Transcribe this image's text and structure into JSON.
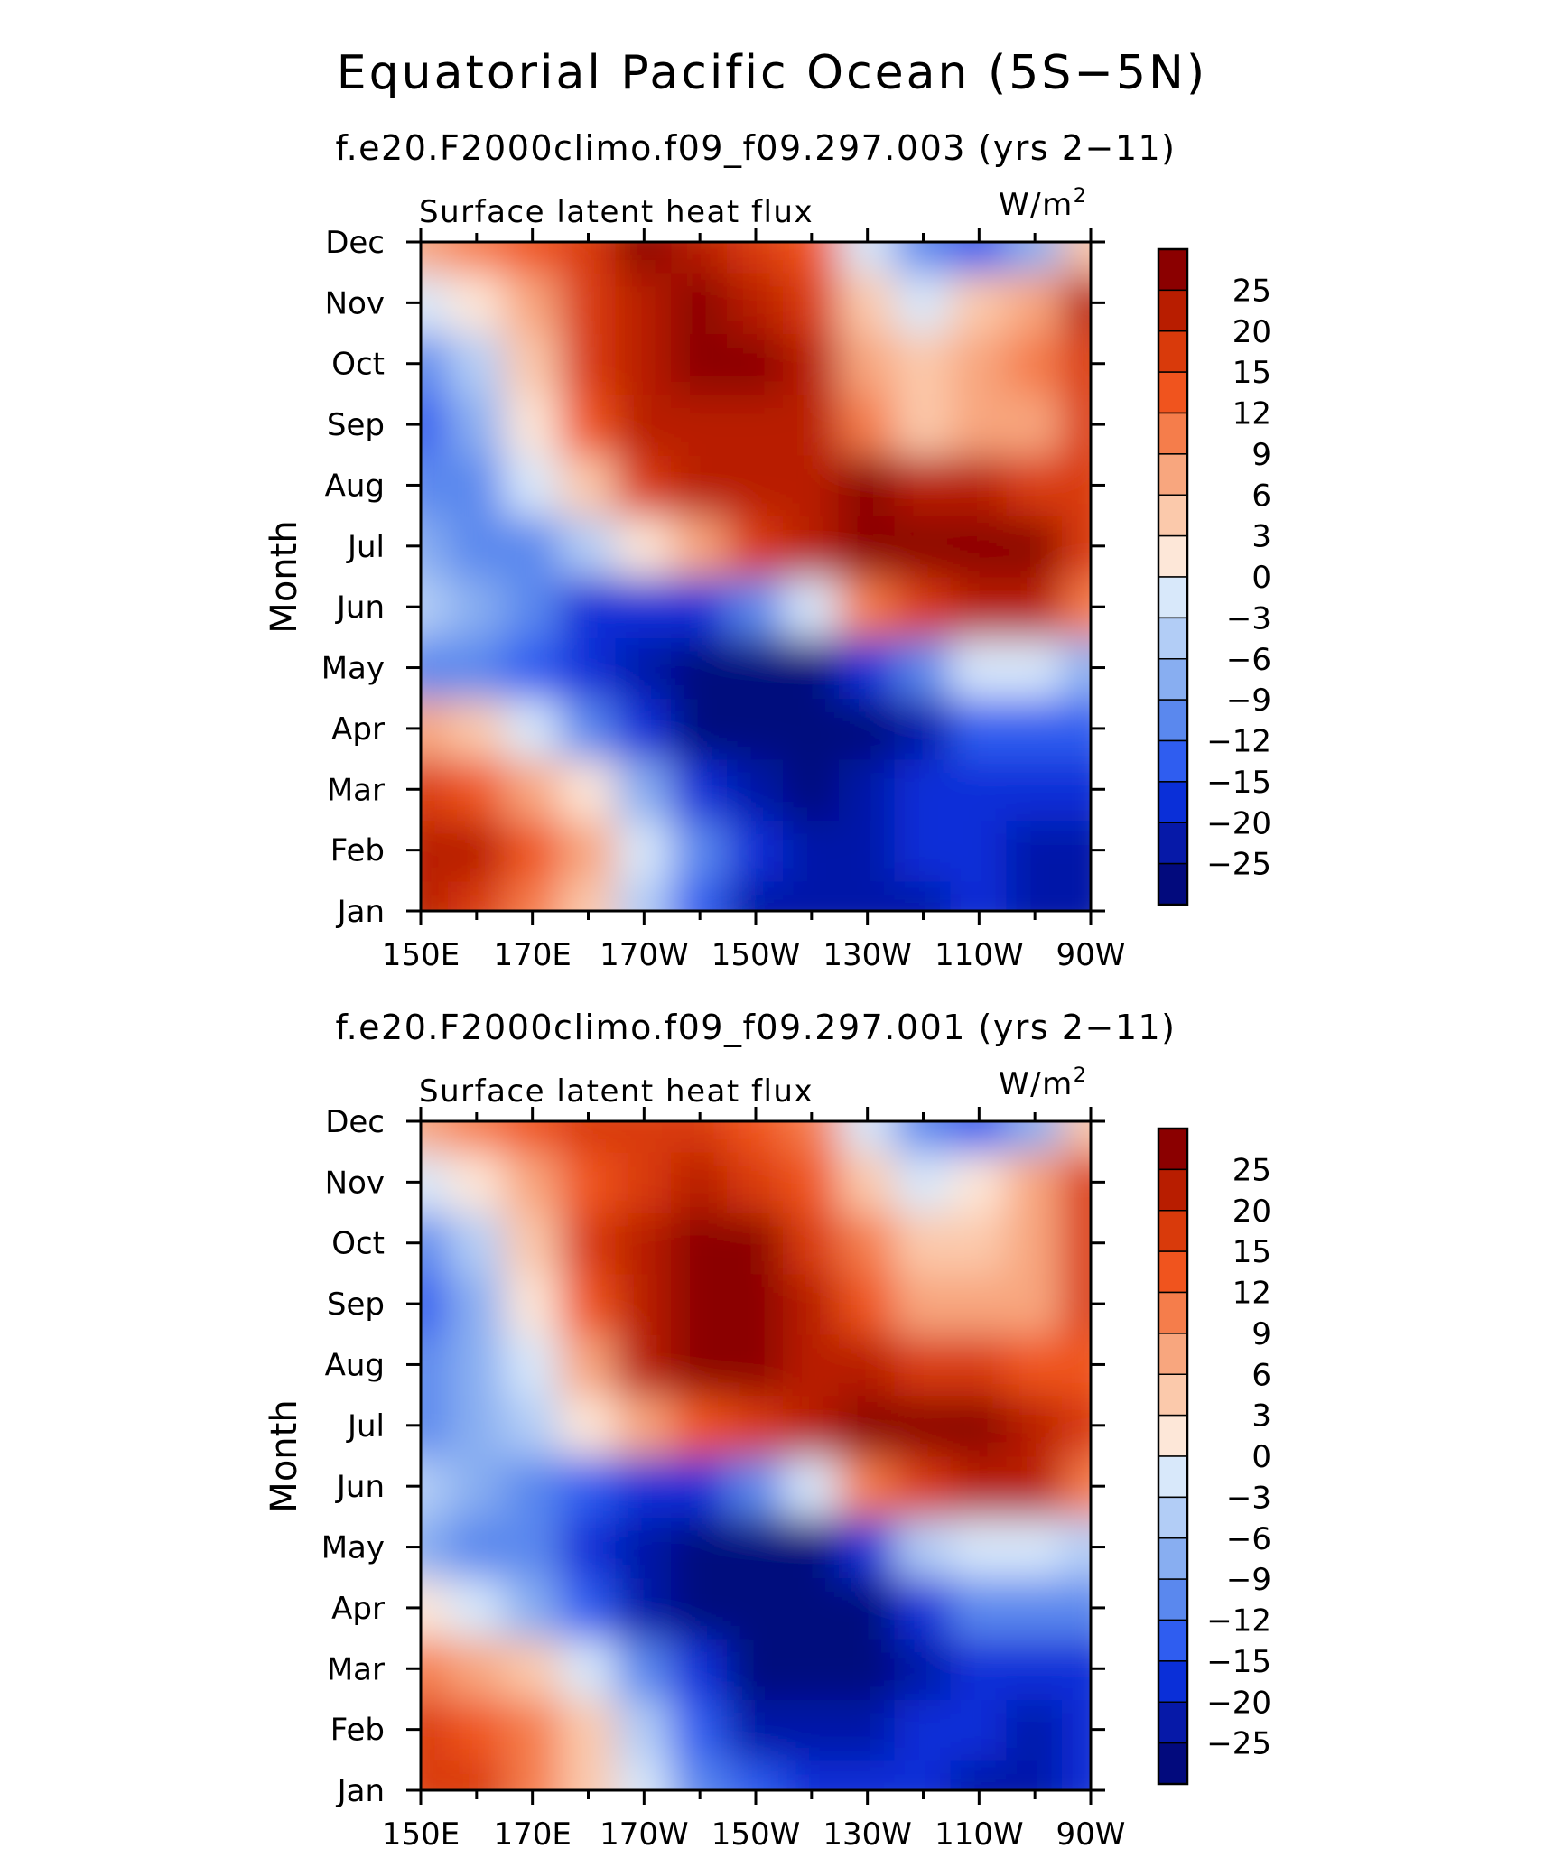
{
  "figure": {
    "title": "Equatorial Pacific Ocean (5S−5N)"
  },
  "colorbar": {
    "levels": [
      "25",
      "20",
      "15",
      "12",
      "9",
      "6",
      "3",
      "0",
      "−3",
      "−6",
      "−9",
      "−12",
      "−15",
      "−20",
      "−25"
    ],
    "colors": [
      "#8b0000",
      "#b81d00",
      "#d93a0b",
      "#f0541e",
      "#f57d4b",
      "#f8a67e",
      "#fbc9ab",
      "#fde7d8",
      "#d8e8fa",
      "#b2cdf6",
      "#88aef1",
      "#5a88ee",
      "#2f5df0",
      "#0a2fd8",
      "#0619a8",
      "#020a7d"
    ]
  },
  "chart_data": [
    {
      "type": "heatmap",
      "title": "f.e20.F2000climo.f09_f09.297.003 (yrs 2−11)",
      "variable": "Surface latent heat flux",
      "units_base": "W/m",
      "units_exp": "2",
      "xlabel": "",
      "ylabel": "Month",
      "x_range": [
        150,
        270
      ],
      "x_ticks": [
        "150E",
        "170E",
        "170W",
        "150W",
        "130W",
        "110W",
        "90W"
      ],
      "y_ticks": [
        "Jan",
        "Feb",
        "Mar",
        "Apr",
        "May",
        "Jun",
        "Jul",
        "Aug",
        "Sep",
        "Oct",
        "Nov",
        "Dec"
      ],
      "longitudes": [
        150,
        160,
        170,
        180,
        190,
        200,
        210,
        220,
        230,
        240,
        250,
        260,
        270
      ],
      "values": [
        [
          20,
          17,
          10,
          3,
          -6,
          -15,
          -22,
          -24,
          -24,
          -22,
          -20,
          -24,
          -24
        ],
        [
          22,
          20,
          14,
          6,
          -3,
          -12,
          -20,
          -24,
          -22,
          -18,
          -17,
          -22,
          -22
        ],
        [
          16,
          14,
          8,
          0,
          -9,
          -18,
          -25,
          -28,
          -25,
          -20,
          -18,
          -20,
          -20
        ],
        [
          6,
          3,
          -3,
          -10,
          -18,
          -26,
          -30,
          -30,
          -28,
          -22,
          -15,
          -15,
          -15
        ],
        [
          -10,
          -12,
          -15,
          -20,
          -25,
          -30,
          -30,
          -28,
          -20,
          -10,
          -3,
          -3,
          -8
        ],
        [
          -6,
          -8,
          -12,
          -16,
          -20,
          -18,
          -12,
          -3,
          9,
          18,
          22,
          24,
          10
        ],
        [
          -8,
          -10,
          -12,
          -6,
          0,
          8,
          15,
          22,
          27,
          27,
          27,
          25,
          15
        ],
        [
          -12,
          -10,
          -3,
          5,
          15,
          20,
          22,
          22,
          26,
          22,
          20,
          18,
          15
        ],
        [
          -15,
          -9,
          0,
          12,
          20,
          24,
          22,
          20,
          10,
          3,
          6,
          8,
          15
        ],
        [
          -12,
          -6,
          3,
          15,
          22,
          25,
          28,
          20,
          6,
          3,
          6,
          10,
          18
        ],
        [
          -3,
          0,
          6,
          15,
          22,
          25,
          24,
          15,
          3,
          -3,
          3,
          8,
          20
        ],
        [
          6,
          9,
          12,
          18,
          25,
          22,
          18,
          12,
          -3,
          -12,
          -15,
          -9,
          3
        ]
      ]
    },
    {
      "type": "heatmap",
      "title": "f.e20.F2000climo.f09_f09.297.001 (yrs 2−11)",
      "variable": "Surface latent heat flux",
      "units_base": "W/m",
      "units_exp": "2",
      "xlabel": "",
      "ylabel": "Month",
      "x_range": [
        150,
        270
      ],
      "x_ticks": [
        "150E",
        "170E",
        "170W",
        "150W",
        "130W",
        "110W",
        "90W"
      ],
      "y_ticks": [
        "Jan",
        "Feb",
        "Mar",
        "Apr",
        "May",
        "Jun",
        "Jul",
        "Aug",
        "Sep",
        "Oct",
        "Nov",
        "Dec"
      ],
      "longitudes": [
        150,
        160,
        170,
        180,
        190,
        200,
        210,
        220,
        230,
        240,
        250,
        260,
        270
      ],
      "values": [
        [
          18,
          15,
          9,
          3,
          -3,
          -10,
          -15,
          -18,
          -20,
          -20,
          -22,
          -22,
          -20
        ],
        [
          15,
          12,
          9,
          3,
          -6,
          -15,
          -22,
          -25,
          -22,
          -20,
          -20,
          -22,
          -20
        ],
        [
          10,
          8,
          3,
          -3,
          -12,
          -20,
          -28,
          -30,
          -28,
          -22,
          -18,
          -20,
          -20
        ],
        [
          0,
          -3,
          -9,
          -15,
          -22,
          -30,
          -30,
          -30,
          -28,
          -20,
          -12,
          -12,
          -12
        ],
        [
          -8,
          -10,
          -12,
          -16,
          -24,
          -30,
          -30,
          -28,
          -18,
          -6,
          -3,
          -3,
          -6
        ],
        [
          -6,
          -8,
          -10,
          -14,
          -18,
          -16,
          -10,
          -2,
          10,
          18,
          20,
          22,
          10
        ],
        [
          -10,
          -8,
          -6,
          0,
          6,
          12,
          18,
          22,
          26,
          27,
          27,
          22,
          15
        ],
        [
          -12,
          -8,
          -3,
          8,
          20,
          25,
          25,
          22,
          22,
          18,
          15,
          12,
          12
        ],
        [
          -15,
          -9,
          0,
          12,
          22,
          28,
          26,
          20,
          12,
          6,
          6,
          8,
          15
        ],
        [
          -12,
          -6,
          3,
          15,
          20,
          25,
          25,
          18,
          9,
          3,
          3,
          8,
          15
        ],
        [
          -3,
          0,
          6,
          12,
          18,
          20,
          18,
          12,
          3,
          -3,
          0,
          6,
          18
        ],
        [
          6,
          9,
          12,
          15,
          18,
          15,
          12,
          9,
          -3,
          -12,
          -15,
          -9,
          3
        ]
      ]
    }
  ]
}
